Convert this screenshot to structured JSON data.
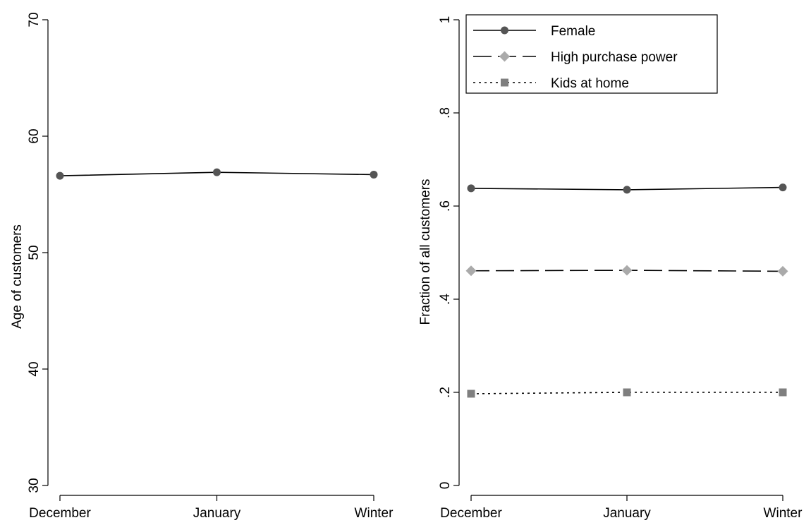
{
  "chart_data": [
    {
      "type": "line",
      "categories": [
        "December",
        "January",
        "Winter"
      ],
      "ylabel": "Age of customers",
      "ylim": [
        30,
        70
      ],
      "yticks": [
        30,
        40,
        50,
        60,
        70
      ],
      "ytick_labels": [
        "30",
        "40",
        "50",
        "60",
        "70"
      ],
      "grid": false,
      "series": [
        {
          "values": [
            56.6,
            56.9,
            56.7
          ],
          "color": "#000000",
          "marker": "circle",
          "marker_color": "#555555",
          "dash": "solid"
        }
      ]
    },
    {
      "type": "line",
      "categories": [
        "December",
        "January",
        "Winter"
      ],
      "ylabel": "Fraction of all customers",
      "ylim": [
        0,
        1
      ],
      "yticks": [
        0,
        0.2,
        0.4,
        0.6,
        0.8,
        1
      ],
      "ytick_labels": [
        "0",
        ".2",
        ".4",
        ".6",
        ".8",
        "1"
      ],
      "grid": false,
      "legend": "top-left",
      "series": [
        {
          "name": "Female",
          "values": [
            0.638,
            0.635,
            0.64
          ],
          "color": "#000000",
          "marker": "circle",
          "marker_color": "#555555",
          "dash": "solid"
        },
        {
          "name": "High purchase power",
          "values": [
            0.461,
            0.462,
            0.46
          ],
          "color": "#000000",
          "marker": "diamond",
          "marker_color": "#aaaaaa",
          "dash": "long"
        },
        {
          "name": "Kids at home",
          "values": [
            0.197,
            0.2,
            0.2
          ],
          "color": "#000000",
          "marker": "square",
          "marker_color": "#7f7f7f",
          "dash": "dot"
        }
      ]
    }
  ]
}
